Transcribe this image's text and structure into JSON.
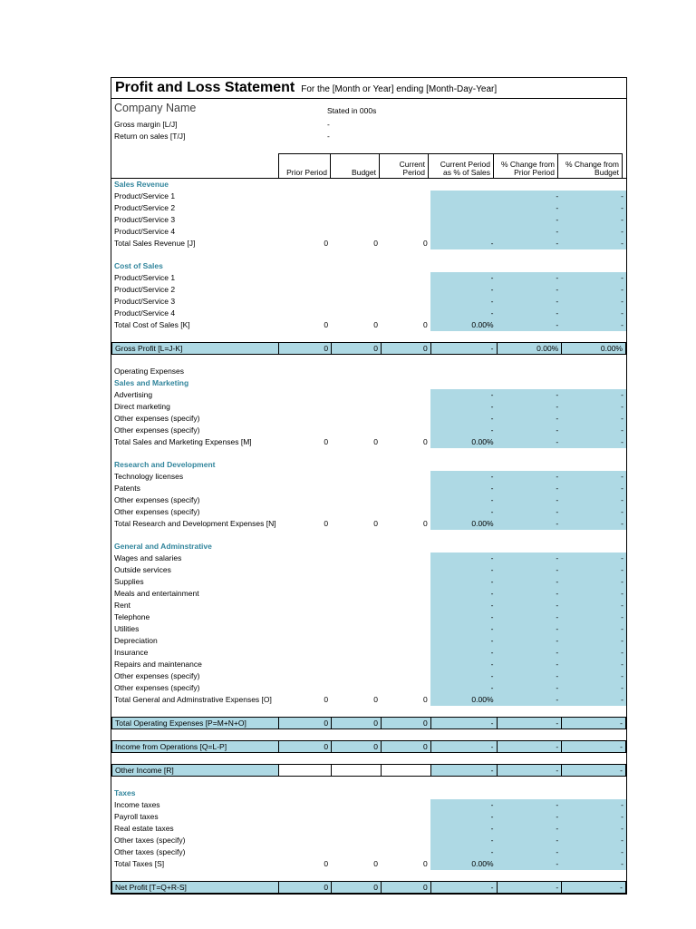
{
  "colors": {
    "cell_fill": "#aed9e4",
    "section_heading": "#31859c",
    "border": "#000000",
    "text": "#000000"
  },
  "title_block": {
    "title": "Profit and Loss Statement",
    "subtitle": "For the [Month or Year] ending [Month-Day-Year]",
    "company_name": "Company Name",
    "stated_in": "Stated in 000s",
    "metrics": [
      {
        "label": "Gross margin [L/J]",
        "value": "-"
      },
      {
        "label": "Return on sales [T/J]",
        "value": "-"
      }
    ]
  },
  "columns": [
    "Prior Period",
    "Budget",
    "Current\nPeriod",
    "Current Period\nas % of Sales",
    "% Change from\nPrior Period",
    "% Change from\nBudget"
  ],
  "rows": [
    {
      "type": "section",
      "label": "Sales Revenue"
    },
    {
      "type": "item",
      "label": "Product/Service 1",
      "values": [
        "",
        "",
        "",
        "",
        "-",
        "-"
      ]
    },
    {
      "type": "item",
      "label": "Product/Service 2",
      "values": [
        "",
        "",
        "",
        "",
        "-",
        "-"
      ]
    },
    {
      "type": "item",
      "label": "Product/Service 3",
      "values": [
        "",
        "",
        "",
        "",
        "-",
        "-"
      ]
    },
    {
      "type": "item",
      "label": "Product/Service 4",
      "values": [
        "",
        "",
        "",
        "",
        "-",
        "-"
      ]
    },
    {
      "type": "total",
      "label": "Total Sales Revenue [J]",
      "values": [
        "0",
        "0",
        "0",
        "-",
        "-",
        "-"
      ]
    },
    {
      "type": "blank"
    },
    {
      "type": "section",
      "label": "Cost of Sales"
    },
    {
      "type": "item",
      "label": "Product/Service 1",
      "values": [
        "",
        "",
        "",
        "-",
        "-",
        "-"
      ]
    },
    {
      "type": "item",
      "label": "Product/Service 2",
      "values": [
        "",
        "",
        "",
        "-",
        "-",
        "-"
      ]
    },
    {
      "type": "item",
      "label": "Product/Service 3",
      "values": [
        "",
        "",
        "",
        "-",
        "-",
        "-"
      ]
    },
    {
      "type": "item",
      "label": "Product/Service 4",
      "values": [
        "",
        "",
        "",
        "-",
        "-",
        "-"
      ]
    },
    {
      "type": "total",
      "label": "Total Cost of Sales [K]",
      "values": [
        "0",
        "0",
        "0",
        "0.00%",
        "-",
        "-"
      ]
    },
    {
      "type": "blank"
    },
    {
      "type": "summary",
      "label": "Gross Profit [L=J-K]",
      "values": [
        "0",
        "0",
        "0",
        "-",
        "0.00%",
        "0.00%"
      ]
    },
    {
      "type": "blank"
    },
    {
      "type": "plain",
      "label": "Operating Expenses"
    },
    {
      "type": "section",
      "label": "Sales and Marketing"
    },
    {
      "type": "item",
      "label": "Advertising",
      "values": [
        "",
        "",
        "",
        "-",
        "-",
        "-"
      ]
    },
    {
      "type": "item",
      "label": "Direct marketing",
      "values": [
        "",
        "",
        "",
        "-",
        "-",
        "-"
      ]
    },
    {
      "type": "item",
      "label": "Other expenses (specify)",
      "values": [
        "",
        "",
        "",
        "-",
        "-",
        "-"
      ]
    },
    {
      "type": "item",
      "label": "Other expenses (specify)",
      "values": [
        "",
        "",
        "",
        "-",
        "-",
        "-"
      ]
    },
    {
      "type": "total",
      "label": "Total Sales and Marketing Expenses [M]",
      "values": [
        "0",
        "0",
        "0",
        "0.00%",
        "-",
        "-"
      ]
    },
    {
      "type": "blank"
    },
    {
      "type": "section",
      "label": "Research and Development"
    },
    {
      "type": "item",
      "label": "Technology licenses",
      "values": [
        "",
        "",
        "",
        "-",
        "-",
        "-"
      ]
    },
    {
      "type": "item",
      "label": "Patents",
      "values": [
        "",
        "",
        "",
        "-",
        "-",
        "-"
      ]
    },
    {
      "type": "item",
      "label": "Other expenses (specify)",
      "values": [
        "",
        "",
        "",
        "-",
        "-",
        "-"
      ]
    },
    {
      "type": "item",
      "label": "Other expenses (specify)",
      "values": [
        "",
        "",
        "",
        "-",
        "-",
        "-"
      ]
    },
    {
      "type": "total",
      "label": "Total Research and Development Expenses [N]",
      "values": [
        "0",
        "0",
        "0",
        "0.00%",
        "-",
        "-"
      ]
    },
    {
      "type": "blank"
    },
    {
      "type": "section",
      "label": "General and Adminstrative"
    },
    {
      "type": "item",
      "label": "Wages and salaries",
      "values": [
        "",
        "",
        "",
        "-",
        "-",
        "-"
      ]
    },
    {
      "type": "item",
      "label": "Outside services",
      "values": [
        "",
        "",
        "",
        "-",
        "-",
        "-"
      ]
    },
    {
      "type": "item",
      "label": "Supplies",
      "values": [
        "",
        "",
        "",
        "-",
        "-",
        "-"
      ]
    },
    {
      "type": "item",
      "label": "Meals and entertainment",
      "values": [
        "",
        "",
        "",
        "-",
        "-",
        "-"
      ]
    },
    {
      "type": "item",
      "label": "Rent",
      "values": [
        "",
        "",
        "",
        "-",
        "-",
        "-"
      ]
    },
    {
      "type": "item",
      "label": "Telephone",
      "values": [
        "",
        "",
        "",
        "-",
        "-",
        "-"
      ]
    },
    {
      "type": "item",
      "label": "Utilities",
      "values": [
        "",
        "",
        "",
        "-",
        "-",
        "-"
      ]
    },
    {
      "type": "item",
      "label": "Depreciation",
      "values": [
        "",
        "",
        "",
        "-",
        "-",
        "-"
      ]
    },
    {
      "type": "item",
      "label": "Insurance",
      "values": [
        "",
        "",
        "",
        "-",
        "-",
        "-"
      ]
    },
    {
      "type": "item",
      "label": "Repairs and maintenance",
      "values": [
        "",
        "",
        "",
        "-",
        "-",
        "-"
      ]
    },
    {
      "type": "item",
      "label": "Other expenses (specify)",
      "values": [
        "",
        "",
        "",
        "-",
        "-",
        "-"
      ]
    },
    {
      "type": "item",
      "label": "Other expenses (specify)",
      "values": [
        "",
        "",
        "",
        "-",
        "-",
        "-"
      ]
    },
    {
      "type": "total",
      "label": "Total General and Adminstrative Expenses [O]",
      "values": [
        "0",
        "0",
        "0",
        "0.00%",
        "-",
        "-"
      ]
    },
    {
      "type": "blank"
    },
    {
      "type": "summary",
      "label": "Total Operating Expenses [P=M+N+O]",
      "values": [
        "0",
        "0",
        "0",
        "-",
        "-",
        "-"
      ]
    },
    {
      "type": "blank"
    },
    {
      "type": "summary",
      "label": "Income from Operations [Q=L-P]",
      "values": [
        "0",
        "0",
        "0",
        "-",
        "-",
        "-"
      ]
    },
    {
      "type": "blank"
    },
    {
      "type": "input_summary",
      "label": "Other Income [R]",
      "values": [
        "",
        "",
        "",
        "-",
        "-",
        "-"
      ]
    },
    {
      "type": "blank"
    },
    {
      "type": "section",
      "label": "Taxes"
    },
    {
      "type": "item",
      "label": "Income taxes",
      "values": [
        "",
        "",
        "",
        "-",
        "-",
        "-"
      ]
    },
    {
      "type": "item",
      "label": "Payroll taxes",
      "values": [
        "",
        "",
        "",
        "-",
        "-",
        "-"
      ]
    },
    {
      "type": "item",
      "label": "Real estate taxes",
      "values": [
        "",
        "",
        "",
        "-",
        "-",
        "-"
      ]
    },
    {
      "type": "item",
      "label": "Other taxes (specify)",
      "values": [
        "",
        "",
        "",
        "-",
        "-",
        "-"
      ]
    },
    {
      "type": "item",
      "label": "Other taxes (specify)",
      "values": [
        "",
        "",
        "",
        "-",
        "-",
        "-"
      ]
    },
    {
      "type": "total",
      "label": "Total Taxes [S]",
      "values": [
        "0",
        "0",
        "0",
        "0.00%",
        "-",
        "-"
      ]
    },
    {
      "type": "blank"
    },
    {
      "type": "summary",
      "label": "Net Profit [T=Q+R-S]",
      "values": [
        "0",
        "0",
        "0",
        "-",
        "-",
        "-"
      ]
    }
  ]
}
